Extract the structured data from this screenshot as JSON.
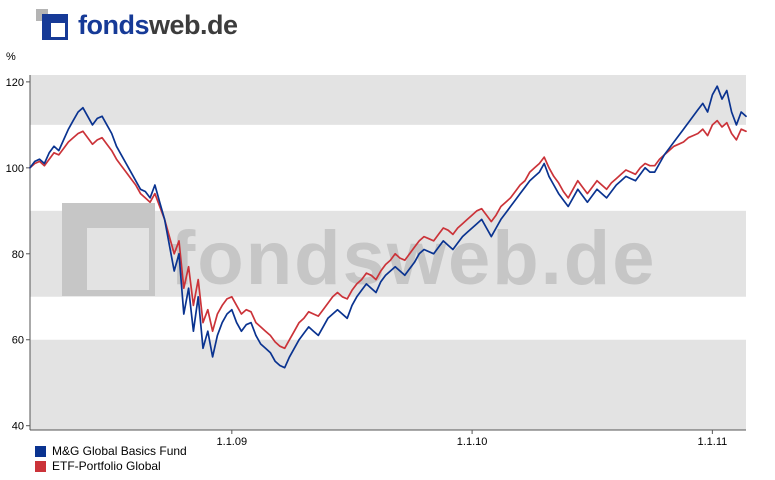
{
  "header": {
    "logo_text_primary": "fonds",
    "logo_text_secondary": "web.de"
  },
  "brand": {
    "blue": "#163a97",
    "dark": "#3c3c3c"
  },
  "watermark": {
    "text": "fondsweb.de"
  },
  "chart_data": {
    "type": "line",
    "title": "",
    "xlabel": "",
    "ylabel": "%",
    "legend_position": "bottom-left",
    "grid": "alternating-gray-bands",
    "band_color": "#e3e3e3",
    "bands_gray": [
      [
        110,
        121.6
      ],
      [
        70,
        90
      ],
      [
        39,
        60
      ]
    ],
    "ylim": [
      39,
      121.6
    ],
    "y_ticks": [
      40,
      60,
      80,
      100,
      120
    ],
    "xlim": [
      2008.16,
      2011.14
    ],
    "x_ticks": [
      {
        "year": 2009.0,
        "label": "1.1.09"
      },
      {
        "year": 2010.0,
        "label": "1.1.10"
      },
      {
        "year": 2011.0,
        "label": "1.1.11"
      }
    ],
    "x_start": 2008.16,
    "x_step": 0.02,
    "series": [
      {
        "name": "M&G Global Basics Fund",
        "color": "#0a3390",
        "values": [
          100,
          101.5,
          102,
          101,
          103.5,
          105,
          104,
          106.5,
          109,
          111,
          113,
          114,
          112,
          110,
          111.5,
          112,
          110,
          108,
          105,
          103,
          101,
          99,
          97,
          95,
          94.5,
          93,
          96,
          92,
          88,
          82,
          76,
          80,
          66,
          72,
          62,
          70,
          58,
          62,
          56,
          61,
          64,
          66,
          67,
          64,
          62,
          63.5,
          64,
          61,
          59,
          58,
          57,
          55,
          54,
          53.5,
          56,
          58,
          60,
          61.5,
          63,
          62,
          61,
          63,
          65,
          66,
          67,
          66,
          65,
          68,
          70,
          71.5,
          73,
          72,
          71,
          73.5,
          75,
          76,
          77,
          76,
          75,
          76.5,
          78,
          80,
          81,
          80.5,
          80,
          81.5,
          83,
          82,
          81,
          82.5,
          84,
          85,
          86,
          87,
          88,
          86,
          84,
          86,
          88,
          89.5,
          91,
          92.5,
          94,
          95.5,
          97,
          98,
          99,
          101,
          98,
          96,
          94,
          92.5,
          91,
          93,
          95,
          93.5,
          92,
          93.5,
          95,
          94,
          93,
          94.5,
          96,
          97,
          98,
          97.5,
          97,
          98.5,
          100,
          99,
          99,
          101,
          103,
          104.5,
          106,
          107.5,
          109,
          110.5,
          112,
          113.5,
          115,
          113,
          117,
          119,
          116,
          118,
          113,
          110,
          113,
          112
        ]
      },
      {
        "name": "ETF-Portfolio Global",
        "color": "#cb3339",
        "values": [
          100,
          101,
          101.5,
          100.5,
          102,
          103.5,
          103,
          104.5,
          106,
          107,
          108,
          108.5,
          107,
          105.5,
          106.5,
          107,
          105.5,
          104,
          102,
          100.5,
          99,
          97.5,
          96,
          94,
          93,
          92,
          94,
          91,
          88,
          84,
          80,
          83,
          72,
          77,
          68,
          74,
          64,
          67,
          62,
          66,
          68,
          69.5,
          70,
          68,
          66,
          67,
          66.5,
          64,
          63,
          62,
          61,
          59.5,
          58.5,
          58,
          60,
          62,
          64,
          65,
          66.5,
          66,
          65.5,
          67,
          68.5,
          70,
          71,
          70,
          69.5,
          71.5,
          73,
          74,
          75.5,
          75,
          74,
          76,
          77.5,
          78.5,
          80,
          79,
          78.5,
          80,
          81.5,
          83,
          84,
          83.5,
          83,
          84.5,
          86,
          85.5,
          84.5,
          86,
          87,
          88,
          89,
          90,
          90.5,
          89,
          87.5,
          89,
          91,
          92,
          93,
          94.5,
          96,
          97,
          99,
          100,
          101,
          102.5,
          100,
          98,
          96.5,
          94.5,
          93,
          95,
          97,
          95.5,
          94,
          95.5,
          97,
          96,
          95,
          96.5,
          97.5,
          98.5,
          99.5,
          99,
          98.5,
          100,
          101,
          100.5,
          100.5,
          102,
          103,
          104,
          105,
          105.5,
          106,
          107,
          107.5,
          108,
          109,
          107.5,
          110,
          111,
          109.5,
          110.5,
          108,
          106.5,
          109,
          108.5
        ]
      }
    ]
  }
}
